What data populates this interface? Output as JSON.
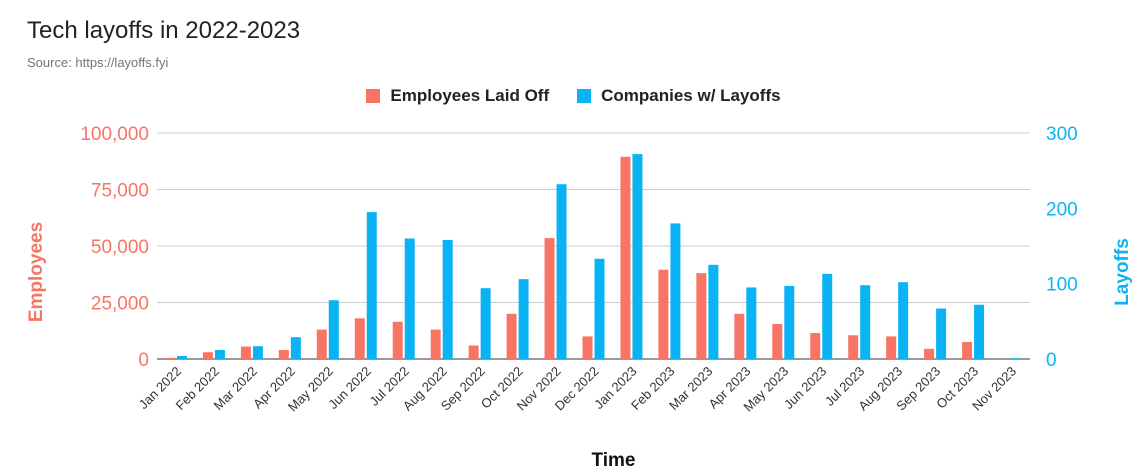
{
  "chart_data": {
    "type": "bar",
    "title": "Tech layoffs in 2022-2023",
    "subtitle": "Source: https://layoffs.fyi",
    "xlabel": "Time",
    "ylabel_left": "Employees",
    "ylabel_right": "Layoffs",
    "ylim_left": [
      0,
      100000
    ],
    "ylim_right": [
      0,
      300
    ],
    "yticks_left": [
      "0",
      "25,000",
      "50,000",
      "75,000",
      "100,000"
    ],
    "yticks_right": [
      "0",
      "100",
      "200",
      "300"
    ],
    "grid": true,
    "legend_position": "top-center",
    "categories": [
      "Jan 2022",
      "Feb 2022",
      "Mar 2022",
      "Apr 2022",
      "May 2022",
      "Jun 2022",
      "Jul 2022",
      "Aug 2022",
      "Sep 2022",
      "Oct 2022",
      "Nov 2022",
      "Dec 2022",
      "Jan 2023",
      "Feb 2023",
      "Mar 2023",
      "Apr 2023",
      "May 2023",
      "Jun 2023",
      "Jul 2023",
      "Aug 2023",
      "Sep 2023",
      "Oct 2023",
      "Nov 2023"
    ],
    "series": [
      {
        "name": "Employees Laid Off",
        "axis": "left",
        "color": "#f87565",
        "values": [
          500,
          3000,
          5500,
          4000,
          13000,
          18000,
          16500,
          13000,
          6000,
          20000,
          53500,
          10000,
          89500,
          39500,
          38000,
          20000,
          15500,
          11500,
          10500,
          10000,
          4500,
          7500,
          0
        ]
      },
      {
        "name": "Companies w/ Layoffs",
        "axis": "right",
        "color": "#0ab4f4",
        "values": [
          4,
          12,
          17,
          29,
          78,
          195,
          160,
          158,
          94,
          106,
          232,
          133,
          272,
          180,
          125,
          95,
          97,
          113,
          98,
          102,
          67,
          72,
          1
        ]
      }
    ]
  }
}
